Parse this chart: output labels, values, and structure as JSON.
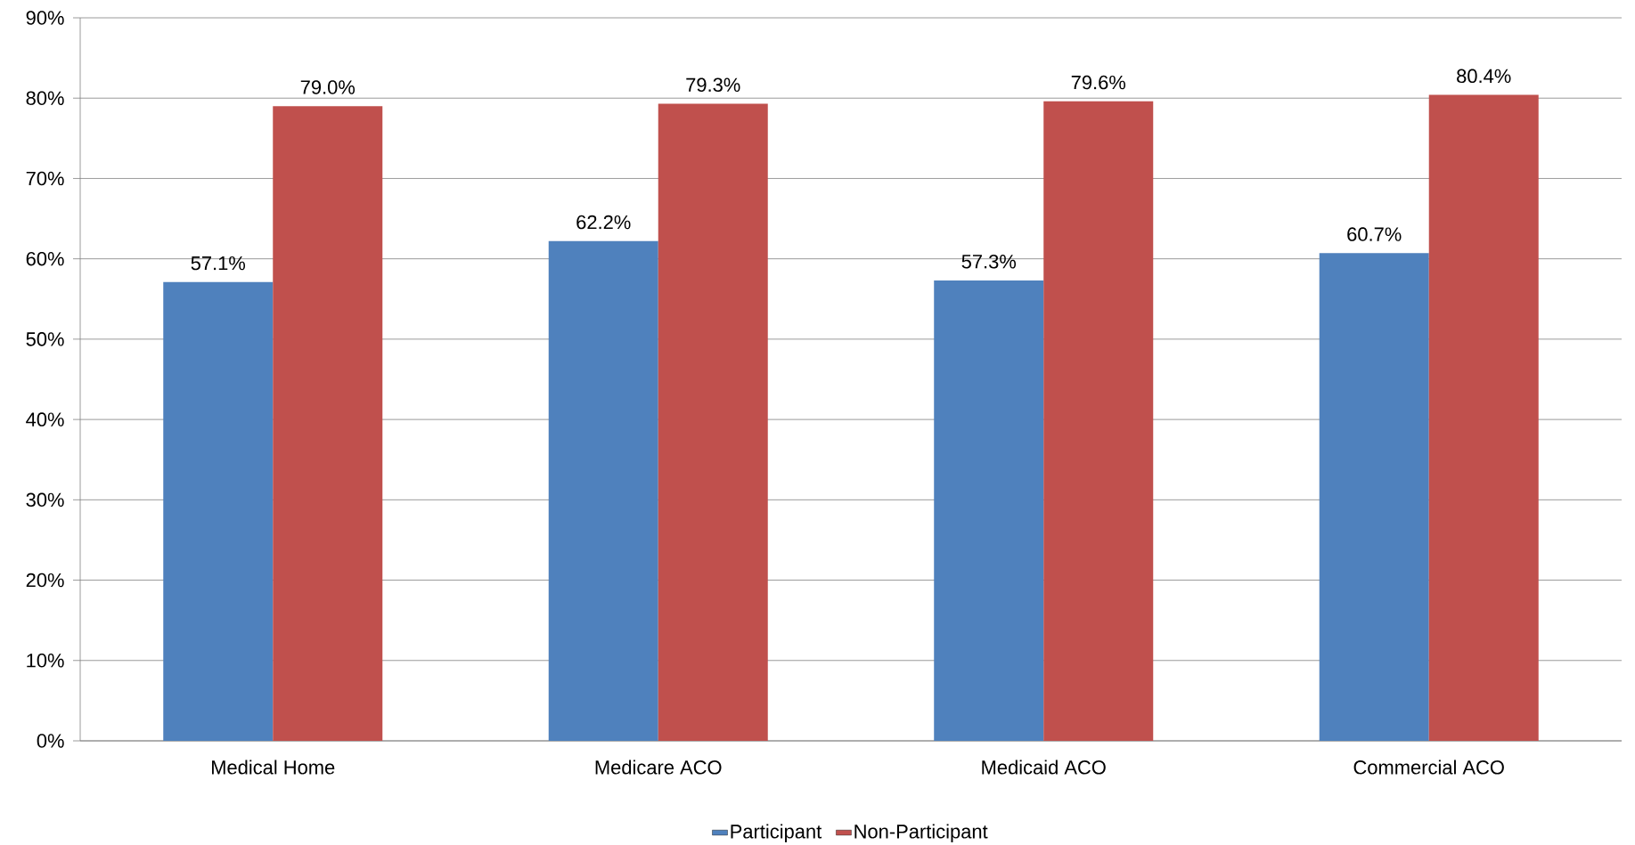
{
  "chart_data": {
    "type": "bar",
    "categories": [
      "Medical Home",
      "Medicare ACO",
      "Medicaid ACO",
      "Commercial ACO"
    ],
    "series": [
      {
        "name": "Participant",
        "color": "#4f81bd",
        "values": [
          57.1,
          62.2,
          57.3,
          60.7
        ],
        "value_labels": [
          "57.1%",
          "62.2%",
          "57.3%",
          "60.7%"
        ]
      },
      {
        "name": "Non-Participant",
        "color": "#c0504d",
        "values": [
          79.0,
          79.3,
          79.6,
          80.4
        ],
        "value_labels": [
          "79.0%",
          "79.3%",
          "79.6%",
          "80.4%"
        ]
      }
    ],
    "ylim": [
      0,
      90
    ],
    "yticks": [
      {
        "value": 0,
        "label": "0%"
      },
      {
        "value": 10,
        "label": "10%"
      },
      {
        "value": 20,
        "label": "20%"
      },
      {
        "value": 30,
        "label": "30%"
      },
      {
        "value": 40,
        "label": "40%"
      },
      {
        "value": 50,
        "label": "50%"
      },
      {
        "value": 60,
        "label": "60%"
      },
      {
        "value": 70,
        "label": "70%"
      },
      {
        "value": 80,
        "label": "80%"
      },
      {
        "value": 90,
        "label": "90%"
      }
    ],
    "grid": "y",
    "legend": "bottom"
  }
}
